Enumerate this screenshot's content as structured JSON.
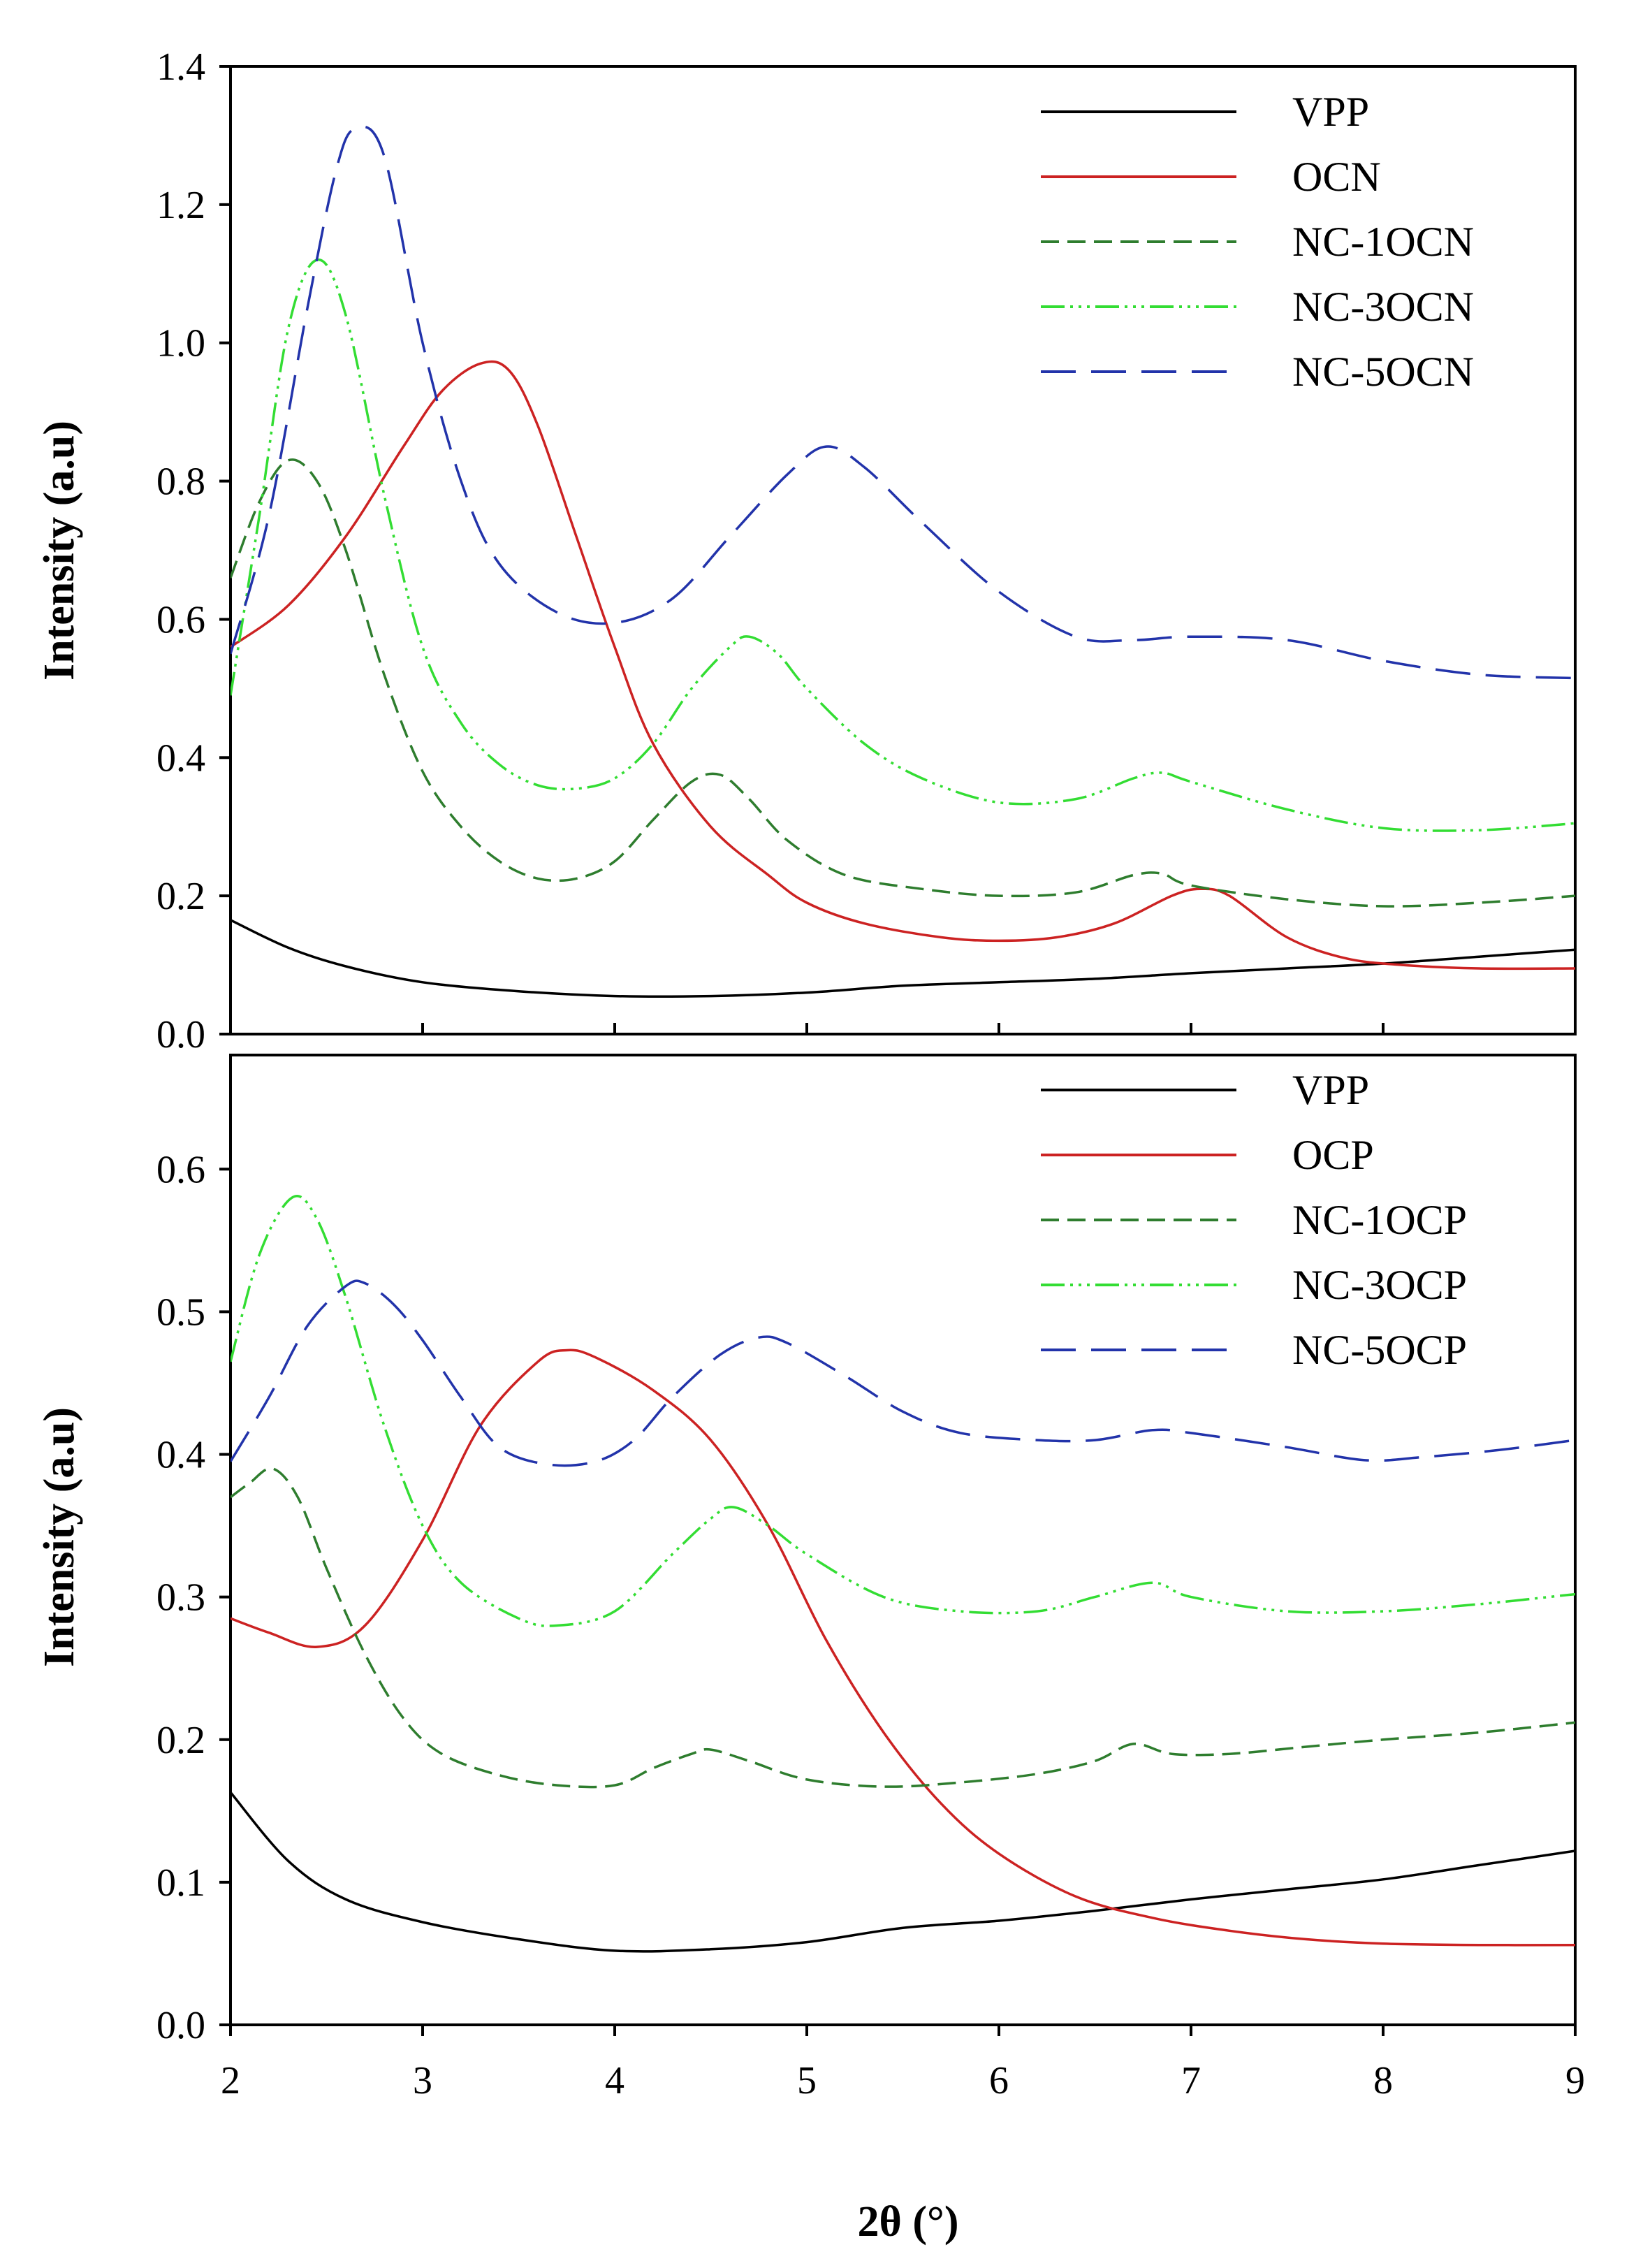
{
  "chart_data": [
    {
      "type": "line",
      "panel": "top",
      "title": "",
      "xlabel": "",
      "ylabel": "Intensity (a.u)",
      "xlim": [
        2,
        9
      ],
      "ylim": [
        0.0,
        1.4
      ],
      "yticks": [
        "0.0",
        "0.2",
        "0.4",
        "0.6",
        "0.8",
        "1.0",
        "1.2",
        "1.4"
      ],
      "grid": false,
      "legend_position": "top-right",
      "series": [
        {
          "name": "VPP",
          "color": "#000000",
          "dash": "solid",
          "points": [
            [
              2.0,
              0.165
            ],
            [
              2.3,
              0.125
            ],
            [
              2.6,
              0.098
            ],
            [
              3.0,
              0.075
            ],
            [
              3.5,
              0.062
            ],
            [
              4.0,
              0.055
            ],
            [
              4.5,
              0.055
            ],
            [
              5.0,
              0.06
            ],
            [
              5.5,
              0.07
            ],
            [
              6.0,
              0.075
            ],
            [
              6.5,
              0.08
            ],
            [
              7.0,
              0.088
            ],
            [
              7.5,
              0.095
            ],
            [
              8.0,
              0.102
            ],
            [
              8.5,
              0.112
            ],
            [
              9.0,
              0.122
            ]
          ]
        },
        {
          "name": "OCN",
          "color": "#cc2222",
          "dash": "solid",
          "points": [
            [
              2.0,
              0.56
            ],
            [
              2.3,
              0.62
            ],
            [
              2.6,
              0.72
            ],
            [
              2.9,
              0.85
            ],
            [
              3.1,
              0.93
            ],
            [
              3.3,
              0.97
            ],
            [
              3.45,
              0.96
            ],
            [
              3.6,
              0.88
            ],
            [
              3.8,
              0.72
            ],
            [
              4.0,
              0.56
            ],
            [
              4.2,
              0.42
            ],
            [
              4.5,
              0.3
            ],
            [
              4.8,
              0.23
            ],
            [
              5.0,
              0.19
            ],
            [
              5.3,
              0.16
            ],
            [
              5.7,
              0.14
            ],
            [
              6.0,
              0.135
            ],
            [
              6.3,
              0.14
            ],
            [
              6.6,
              0.16
            ],
            [
              6.9,
              0.2
            ],
            [
              7.05,
              0.21
            ],
            [
              7.2,
              0.2
            ],
            [
              7.5,
              0.14
            ],
            [
              7.8,
              0.11
            ],
            [
              8.1,
              0.1
            ],
            [
              8.5,
              0.095
            ],
            [
              9.0,
              0.095
            ]
          ]
        },
        {
          "name": "NC-1OCN",
          "color": "#2e7d2e",
          "dash": "26,12",
          "points": [
            [
              2.0,
              0.66
            ],
            [
              2.15,
              0.77
            ],
            [
              2.3,
              0.83
            ],
            [
              2.45,
              0.8
            ],
            [
              2.6,
              0.7
            ],
            [
              2.8,
              0.52
            ],
            [
              3.0,
              0.38
            ],
            [
              3.2,
              0.3
            ],
            [
              3.4,
              0.25
            ],
            [
              3.6,
              0.225
            ],
            [
              3.8,
              0.225
            ],
            [
              4.0,
              0.25
            ],
            [
              4.2,
              0.31
            ],
            [
              4.4,
              0.365
            ],
            [
              4.55,
              0.375
            ],
            [
              4.7,
              0.34
            ],
            [
              4.9,
              0.28
            ],
            [
              5.2,
              0.23
            ],
            [
              5.6,
              0.21
            ],
            [
              6.0,
              0.2
            ],
            [
              6.4,
              0.205
            ],
            [
              6.7,
              0.23
            ],
            [
              6.85,
              0.232
            ],
            [
              7.0,
              0.215
            ],
            [
              7.5,
              0.195
            ],
            [
              8.0,
              0.185
            ],
            [
              8.5,
              0.19
            ],
            [
              9.0,
              0.2
            ]
          ]
        },
        {
          "name": "NC-3OCN",
          "color": "#33dd33",
          "dash": "34,8,4,8,4,8,4,8",
          "points": [
            [
              2.0,
              0.49
            ],
            [
              2.15,
              0.75
            ],
            [
              2.3,
              1.02
            ],
            [
              2.45,
              1.12
            ],
            [
              2.6,
              1.04
            ],
            [
              2.8,
              0.78
            ],
            [
              3.0,
              0.56
            ],
            [
              3.2,
              0.45
            ],
            [
              3.4,
              0.39
            ],
            [
              3.6,
              0.36
            ],
            [
              3.8,
              0.355
            ],
            [
              4.0,
              0.37
            ],
            [
              4.2,
              0.42
            ],
            [
              4.4,
              0.5
            ],
            [
              4.6,
              0.56
            ],
            [
              4.7,
              0.575
            ],
            [
              4.85,
              0.55
            ],
            [
              5.0,
              0.5
            ],
            [
              5.3,
              0.42
            ],
            [
              5.6,
              0.37
            ],
            [
              6.0,
              0.335
            ],
            [
              6.4,
              0.34
            ],
            [
              6.7,
              0.37
            ],
            [
              6.85,
              0.378
            ],
            [
              7.0,
              0.365
            ],
            [
              7.5,
              0.325
            ],
            [
              8.0,
              0.298
            ],
            [
              8.5,
              0.295
            ],
            [
              9.0,
              0.305
            ]
          ]
        },
        {
          "name": "NC-5OCN",
          "color": "#2233aa",
          "dash": "50,22",
          "points": [
            [
              2.0,
              0.55
            ],
            [
              2.2,
              0.75
            ],
            [
              2.4,
              1.05
            ],
            [
              2.55,
              1.25
            ],
            [
              2.65,
              1.31
            ],
            [
              2.8,
              1.27
            ],
            [
              3.0,
              1.0
            ],
            [
              3.2,
              0.8
            ],
            [
              3.4,
              0.68
            ],
            [
              3.7,
              0.61
            ],
            [
              4.0,
              0.595
            ],
            [
              4.3,
              0.63
            ],
            [
              4.6,
              0.72
            ],
            [
              4.9,
              0.81
            ],
            [
              5.1,
              0.85
            ],
            [
              5.3,
              0.82
            ],
            [
              5.6,
              0.74
            ],
            [
              6.0,
              0.64
            ],
            [
              6.4,
              0.575
            ],
            [
              6.7,
              0.57
            ],
            [
              7.0,
              0.575
            ],
            [
              7.5,
              0.57
            ],
            [
              8.0,
              0.54
            ],
            [
              8.5,
              0.52
            ],
            [
              9.0,
              0.515
            ]
          ]
        }
      ]
    },
    {
      "type": "line",
      "panel": "bottom",
      "title": "",
      "xlabel": "2θ (°)",
      "ylabel": "Intensity (a.u)",
      "xlim": [
        2,
        9
      ],
      "ylim": [
        0.0,
        0.68
      ],
      "xticks": [
        "2",
        "3",
        "4",
        "5",
        "6",
        "7",
        "8",
        "9"
      ],
      "yticks": [
        "0.0",
        "0.1",
        "0.2",
        "0.3",
        "0.4",
        "0.5",
        "0.6"
      ],
      "grid": false,
      "legend_position": "top-right",
      "series": [
        {
          "name": "VPP",
          "color": "#000000",
          "dash": "solid",
          "points": [
            [
              2.0,
              0.163
            ],
            [
              2.3,
              0.115
            ],
            [
              2.6,
              0.088
            ],
            [
              3.0,
              0.072
            ],
            [
              3.5,
              0.06
            ],
            [
              4.0,
              0.052
            ],
            [
              4.5,
              0.053
            ],
            [
              5.0,
              0.058
            ],
            [
              5.5,
              0.068
            ],
            [
              6.0,
              0.073
            ],
            [
              6.5,
              0.08
            ],
            [
              7.0,
              0.088
            ],
            [
              7.5,
              0.095
            ],
            [
              8.0,
              0.102
            ],
            [
              8.5,
              0.112
            ],
            [
              9.0,
              0.122
            ]
          ]
        },
        {
          "name": "OCP",
          "color": "#cc2222",
          "dash": "solid",
          "points": [
            [
              2.0,
              0.285
            ],
            [
              2.2,
              0.275
            ],
            [
              2.45,
              0.265
            ],
            [
              2.7,
              0.28
            ],
            [
              3.0,
              0.34
            ],
            [
              3.3,
              0.42
            ],
            [
              3.6,
              0.465
            ],
            [
              3.75,
              0.473
            ],
            [
              3.9,
              0.468
            ],
            [
              4.2,
              0.445
            ],
            [
              4.5,
              0.41
            ],
            [
              4.8,
              0.35
            ],
            [
              5.1,
              0.27
            ],
            [
              5.4,
              0.205
            ],
            [
              5.7,
              0.155
            ],
            [
              6.0,
              0.12
            ],
            [
              6.4,
              0.09
            ],
            [
              6.8,
              0.075
            ],
            [
              7.2,
              0.066
            ],
            [
              7.6,
              0.06
            ],
            [
              8.0,
              0.057
            ],
            [
              8.5,
              0.056
            ],
            [
              9.0,
              0.056
            ]
          ]
        },
        {
          "name": "NC-1OCP",
          "color": "#2e7d2e",
          "dash": "26,12",
          "points": [
            [
              2.0,
              0.37
            ],
            [
              2.1,
              0.38
            ],
            [
              2.22,
              0.39
            ],
            [
              2.35,
              0.37
            ],
            [
              2.5,
              0.32
            ],
            [
              2.7,
              0.26
            ],
            [
              2.9,
              0.215
            ],
            [
              3.1,
              0.19
            ],
            [
              3.4,
              0.175
            ],
            [
              3.7,
              0.168
            ],
            [
              4.0,
              0.168
            ],
            [
              4.2,
              0.18
            ],
            [
              4.4,
              0.19
            ],
            [
              4.5,
              0.193
            ],
            [
              4.7,
              0.185
            ],
            [
              5.0,
              0.172
            ],
            [
              5.4,
              0.167
            ],
            [
              5.8,
              0.17
            ],
            [
              6.2,
              0.176
            ],
            [
              6.5,
              0.185
            ],
            [
              6.7,
              0.197
            ],
            [
              6.9,
              0.19
            ],
            [
              7.2,
              0.19
            ],
            [
              7.6,
              0.195
            ],
            [
              8.0,
              0.2
            ],
            [
              8.5,
              0.205
            ],
            [
              9.0,
              0.212
            ]
          ]
        },
        {
          "name": "NC-3OCP",
          "color": "#33dd33",
          "dash": "34,8,4,8,4,8,4,8",
          "points": [
            [
              2.0,
              0.465
            ],
            [
              2.15,
              0.54
            ],
            [
              2.32,
              0.58
            ],
            [
              2.45,
              0.565
            ],
            [
              2.6,
              0.51
            ],
            [
              2.8,
              0.42
            ],
            [
              3.0,
              0.35
            ],
            [
              3.2,
              0.31
            ],
            [
              3.5,
              0.285
            ],
            [
              3.7,
              0.28
            ],
            [
              4.0,
              0.29
            ],
            [
              4.3,
              0.33
            ],
            [
              4.5,
              0.355
            ],
            [
              4.62,
              0.363
            ],
            [
              4.8,
              0.35
            ],
            [
              5.0,
              0.33
            ],
            [
              5.4,
              0.3
            ],
            [
              5.8,
              0.29
            ],
            [
              6.2,
              0.29
            ],
            [
              6.5,
              0.3
            ],
            [
              6.8,
              0.31
            ],
            [
              7.0,
              0.3
            ],
            [
              7.5,
              0.29
            ],
            [
              8.0,
              0.29
            ],
            [
              8.5,
              0.295
            ],
            [
              9.0,
              0.302
            ]
          ]
        },
        {
          "name": "NC-5OCP",
          "color": "#2233aa",
          "dash": "50,22",
          "points": [
            [
              2.0,
              0.395
            ],
            [
              2.2,
              0.44
            ],
            [
              2.4,
              0.49
            ],
            [
              2.6,
              0.518
            ],
            [
              2.7,
              0.52
            ],
            [
              2.85,
              0.505
            ],
            [
              3.0,
              0.48
            ],
            [
              3.2,
              0.44
            ],
            [
              3.4,
              0.405
            ],
            [
              3.65,
              0.393
            ],
            [
              3.9,
              0.395
            ],
            [
              4.1,
              0.41
            ],
            [
              4.3,
              0.44
            ],
            [
              4.55,
              0.47
            ],
            [
              4.75,
              0.482
            ],
            [
              4.9,
              0.478
            ],
            [
              5.2,
              0.455
            ],
            [
              5.5,
              0.43
            ],
            [
              5.8,
              0.415
            ],
            [
              6.2,
              0.41
            ],
            [
              6.5,
              0.41
            ],
            [
              6.8,
              0.417
            ],
            [
              7.0,
              0.415
            ],
            [
              7.5,
              0.405
            ],
            [
              7.9,
              0.396
            ],
            [
              8.2,
              0.398
            ],
            [
              8.6,
              0.403
            ],
            [
              9.0,
              0.41
            ]
          ]
        }
      ]
    }
  ]
}
